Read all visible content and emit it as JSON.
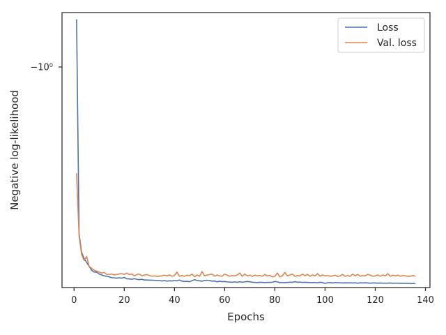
{
  "chart_data": {
    "type": "line",
    "title": "",
    "xlabel": "Epochs",
    "ylabel": "Negative log-likelihood",
    "xlim": [
      -4.8,
      141.8
    ],
    "yscale": "symlog",
    "xticks": [
      0,
      20,
      40,
      60,
      80,
      100,
      120,
      140
    ],
    "xtick_labels": [
      "0",
      "20",
      "40",
      "60",
      "80",
      "100",
      "120",
      "140"
    ],
    "ytick_labels": [
      "−10⁰"
    ],
    "grid": false,
    "legend": "top-right",
    "series": [
      {
        "name": "Loss",
        "color": "#4c72b0",
        "x": [
          1,
          2,
          3,
          4,
          5,
          6,
          7,
          8,
          9,
          10,
          11,
          12,
          13,
          14,
          15,
          16,
          17,
          18,
          19,
          20,
          21,
          22,
          23,
          24,
          25,
          26,
          27,
          28,
          29,
          30,
          31,
          32,
          33,
          34,
          35,
          36,
          37,
          38,
          39,
          40,
          41,
          42,
          43,
          44,
          45,
          46,
          47,
          48,
          49,
          50,
          51,
          52,
          53,
          54,
          55,
          56,
          57,
          58,
          59,
          60,
          61,
          62,
          63,
          64,
          65,
          66,
          67,
          68,
          69,
          70,
          71,
          72,
          73,
          74,
          75,
          76,
          77,
          78,
          79,
          80,
          81,
          82,
          83,
          84,
          85,
          86,
          87,
          88,
          89,
          90,
          91,
          92,
          93,
          94,
          95,
          96,
          97,
          98,
          99,
          100,
          101,
          102,
          103,
          104,
          105,
          106,
          107,
          108,
          109,
          110,
          111,
          112,
          113,
          114,
          115,
          116,
          117,
          118,
          119,
          120,
          121,
          122,
          123,
          124,
          125,
          126,
          127,
          128,
          129,
          130,
          131,
          132,
          133,
          134,
          135,
          136
        ],
        "y": [
          -0.94,
          -1.62,
          -1.71,
          -1.74,
          -1.76,
          -1.78,
          -1.8,
          -1.81,
          -1.81,
          -1.82,
          -1.825,
          -1.83,
          -1.832,
          -1.835,
          -1.84,
          -1.84,
          -1.842,
          -1.84,
          -1.842,
          -1.838,
          -1.846,
          -1.846,
          -1.848,
          -1.845,
          -1.848,
          -1.85,
          -1.848,
          -1.852,
          -1.852,
          -1.853,
          -1.853,
          -1.854,
          -1.854,
          -1.855,
          -1.857,
          -1.855,
          -1.858,
          -1.856,
          -1.857,
          -1.855,
          -1.856,
          -1.852,
          -1.858,
          -1.86,
          -1.859,
          -1.861,
          -1.856,
          -1.85,
          -1.855,
          -1.856,
          -1.858,
          -1.855,
          -1.853,
          -1.855,
          -1.858,
          -1.857,
          -1.862,
          -1.858,
          -1.861,
          -1.86,
          -1.862,
          -1.863,
          -1.864,
          -1.862,
          -1.864,
          -1.861,
          -1.864,
          -1.862,
          -1.86,
          -1.862,
          -1.864,
          -1.865,
          -1.866,
          -1.864,
          -1.865,
          -1.866,
          -1.865,
          -1.865,
          -1.864,
          -1.86,
          -1.862,
          -1.866,
          -1.866,
          -1.866,
          -1.865,
          -1.864,
          -1.864,
          -1.861,
          -1.864,
          -1.863,
          -1.865,
          -1.864,
          -1.865,
          -1.866,
          -1.866,
          -1.866,
          -1.867,
          -1.864,
          -1.866,
          -1.87,
          -1.867,
          -1.866,
          -1.868,
          -1.866,
          -1.867,
          -1.867,
          -1.868,
          -1.867,
          -1.868,
          -1.867,
          -1.868,
          -1.867,
          -1.869,
          -1.867,
          -1.868,
          -1.867,
          -1.868,
          -1.869,
          -1.868,
          -1.868,
          -1.869,
          -1.868,
          -1.869,
          -1.869,
          -1.869,
          -1.868,
          -1.87,
          -1.869,
          -1.869,
          -1.87,
          -1.869,
          -1.87,
          -1.87,
          -1.871,
          -1.871,
          -1.871
        ]
      },
      {
        "name": "Val. loss",
        "color": "#dd8452",
        "x": [
          1,
          2,
          3,
          4,
          5,
          6,
          7,
          8,
          9,
          10,
          11,
          12,
          13,
          14,
          15,
          16,
          17,
          18,
          19,
          20,
          21,
          22,
          23,
          24,
          25,
          26,
          27,
          28,
          29,
          30,
          31,
          32,
          33,
          34,
          35,
          36,
          37,
          38,
          39,
          40,
          41,
          42,
          43,
          44,
          45,
          46,
          47,
          48,
          49,
          50,
          51,
          52,
          53,
          54,
          55,
          56,
          57,
          58,
          59,
          60,
          61,
          62,
          63,
          64,
          65,
          66,
          67,
          68,
          69,
          70,
          71,
          72,
          73,
          74,
          75,
          76,
          77,
          78,
          79,
          80,
          81,
          82,
          83,
          84,
          85,
          86,
          87,
          88,
          89,
          90,
          91,
          92,
          93,
          94,
          95,
          96,
          97,
          98,
          99,
          100,
          101,
          102,
          103,
          104,
          105,
          106,
          107,
          108,
          109,
          110,
          111,
          112,
          113,
          114,
          115,
          116,
          117,
          118,
          119,
          120,
          121,
          122,
          123,
          124,
          125,
          126,
          127,
          128,
          129,
          130,
          131,
          132,
          133,
          134,
          135,
          136
        ],
        "y": [
          -1.36,
          -1.63,
          -1.72,
          -1.75,
          -1.73,
          -1.78,
          -1.79,
          -1.8,
          -1.805,
          -1.81,
          -1.815,
          -1.812,
          -1.822,
          -1.822,
          -1.82,
          -1.825,
          -1.822,
          -1.82,
          -1.818,
          -1.822,
          -1.815,
          -1.823,
          -1.82,
          -1.83,
          -1.823,
          -1.82,
          -1.83,
          -1.825,
          -1.823,
          -1.828,
          -1.832,
          -1.83,
          -1.832,
          -1.832,
          -1.83,
          -1.826,
          -1.83,
          -1.825,
          -1.832,
          -1.828,
          -1.81,
          -1.832,
          -1.828,
          -1.832,
          -1.826,
          -1.83,
          -1.82,
          -1.835,
          -1.825,
          -1.832,
          -1.808,
          -1.83,
          -1.825,
          -1.823,
          -1.82,
          -1.832,
          -1.825,
          -1.83,
          -1.832,
          -1.82,
          -1.826,
          -1.832,
          -1.828,
          -1.83,
          -1.825,
          -1.815,
          -1.832,
          -1.82,
          -1.83,
          -1.826,
          -1.833,
          -1.826,
          -1.83,
          -1.828,
          -1.832,
          -1.822,
          -1.83,
          -1.827,
          -1.835,
          -1.832,
          -1.815,
          -1.835,
          -1.83,
          -1.812,
          -1.83,
          -1.825,
          -1.82,
          -1.833,
          -1.828,
          -1.83,
          -1.82,
          -1.83,
          -1.822,
          -1.832,
          -1.825,
          -1.83,
          -1.818,
          -1.832,
          -1.825,
          -1.83,
          -1.828,
          -1.832,
          -1.83,
          -1.826,
          -1.833,
          -1.83,
          -1.822,
          -1.832,
          -1.828,
          -1.833,
          -1.82,
          -1.83,
          -1.822,
          -1.832,
          -1.828,
          -1.83,
          -1.822,
          -1.826,
          -1.832,
          -1.83,
          -1.825,
          -1.832,
          -1.825,
          -1.83,
          -1.818,
          -1.832,
          -1.826,
          -1.83,
          -1.826,
          -1.832,
          -1.828,
          -1.83,
          -1.832,
          -1.832,
          -1.828,
          -1.832
        ]
      }
    ]
  }
}
